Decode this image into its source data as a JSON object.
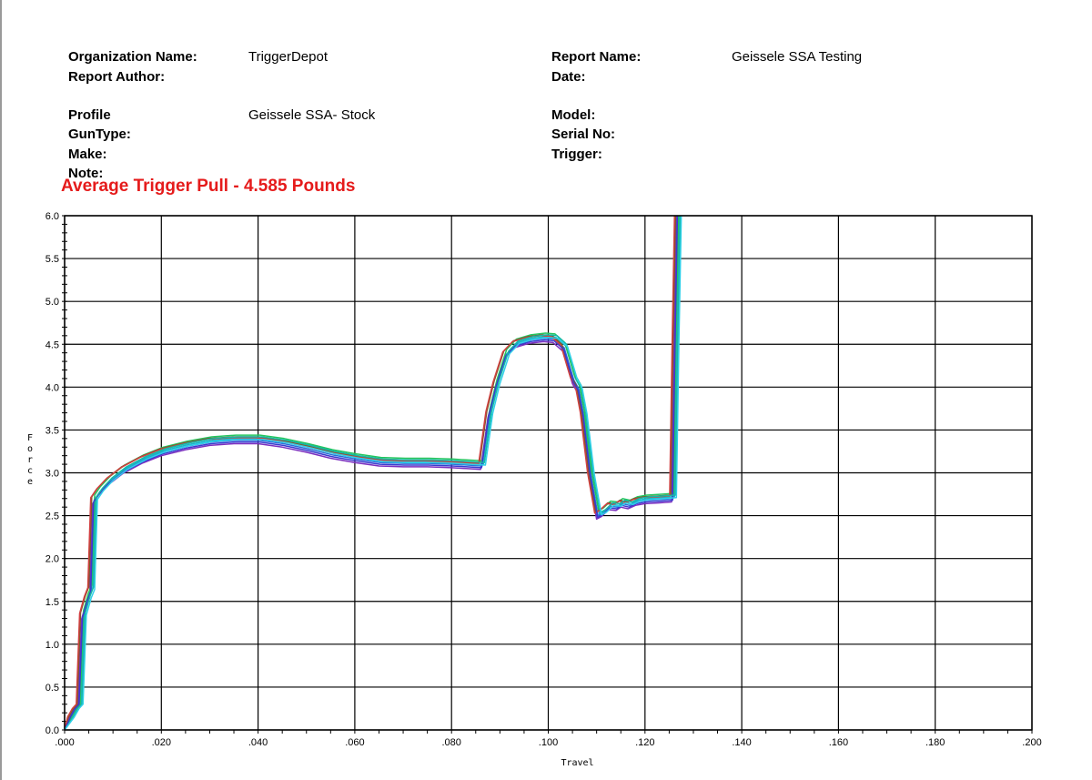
{
  "header": {
    "organization_label": "Organization Name:",
    "organization_value": "TriggerDepot",
    "report_author_label": "Report Author:",
    "report_name_label": "Report Name:",
    "report_name_value": "Geissele SSA Testing",
    "date_label": "Date:",
    "profile_label": "Profile",
    "profile_value": "Geissele SSA- Stock",
    "guntype_label": "GunType:",
    "make_label": "Make:",
    "note_label": "Note:",
    "model_label": "Model:",
    "serial_label": "Serial No:",
    "trigger_label": "Trigger:"
  },
  "colors": {
    "average_text": "#e51b1b",
    "grid": "#000000"
  },
  "chart_data": {
    "type": "line",
    "title": "Average Trigger Pull - 4.585 Pounds",
    "xlabel": "Travel",
    "ylabel": "Force",
    "xlim": [
      0,
      0.2
    ],
    "ylim": [
      0,
      6
    ],
    "x_ticks": [
      ".000",
      ".020",
      ".040",
      ".060",
      ".080",
      ".100",
      ".120",
      ".140",
      ".160",
      ".180",
      ".200"
    ],
    "y_ticks": [
      "0.0",
      "0.5",
      "1.0",
      "1.5",
      "2.0",
      "2.5",
      "3.0",
      "3.5",
      "4.0",
      "4.5",
      "5.0",
      "5.5",
      "6.0"
    ],
    "grid": true,
    "legend": "none",
    "series": [
      {
        "color": "#7b2fbf",
        "dx": 0.0,
        "dy": -0.06
      },
      {
        "color": "#2b6fd9",
        "dx": 0.0003,
        "dy": -0.02
      },
      {
        "color": "#1ab3c9",
        "dx": 0.0006,
        "dy": 0.0
      },
      {
        "color": "#22c55e",
        "dx": 0.0004,
        "dy": 0.04
      },
      {
        "color": "#7a5a2a",
        "dx": -0.0002,
        "dy": 0.02
      },
      {
        "color": "#d04040",
        "dx": -0.0004,
        "dy": 0.01
      },
      {
        "color": "#3a3acf",
        "dx": 0.0002,
        "dy": -0.04
      },
      {
        "color": "#14b8a6",
        "dx": 0.0008,
        "dy": 0.02
      },
      {
        "color": "#30d0e8",
        "dx": 0.001,
        "dy": -0.01
      }
    ],
    "base_curve": [
      [
        0.0,
        0.0
      ],
      [
        0.001,
        0.15
      ],
      [
        0.002,
        0.25
      ],
      [
        0.0028,
        0.3
      ],
      [
        0.0035,
        1.35
      ],
      [
        0.0045,
        1.55
      ],
      [
        0.0052,
        1.65
      ],
      [
        0.0058,
        2.7
      ],
      [
        0.007,
        2.8
      ],
      [
        0.009,
        2.92
      ],
      [
        0.012,
        3.05
      ],
      [
        0.016,
        3.17
      ],
      [
        0.02,
        3.26
      ],
      [
        0.025,
        3.33
      ],
      [
        0.03,
        3.38
      ],
      [
        0.035,
        3.4
      ],
      [
        0.04,
        3.4
      ],
      [
        0.045,
        3.36
      ],
      [
        0.05,
        3.3
      ],
      [
        0.055,
        3.23
      ],
      [
        0.06,
        3.18
      ],
      [
        0.065,
        3.14
      ],
      [
        0.07,
        3.13
      ],
      [
        0.075,
        3.13
      ],
      [
        0.08,
        3.12
      ],
      [
        0.083,
        3.11
      ],
      [
        0.086,
        3.1
      ],
      [
        0.0875,
        3.7
      ],
      [
        0.089,
        4.05
      ],
      [
        0.091,
        4.4
      ],
      [
        0.093,
        4.52
      ],
      [
        0.096,
        4.57
      ],
      [
        0.099,
        4.59
      ],
      [
        0.101,
        4.58
      ],
      [
        0.103,
        4.48
      ],
      [
        0.105,
        4.1
      ],
      [
        0.106,
        4.0
      ],
      [
        0.107,
        3.7
      ],
      [
        0.1085,
        3.0
      ],
      [
        0.11,
        2.52
      ],
      [
        0.111,
        2.55
      ],
      [
        0.1125,
        2.63
      ],
      [
        0.114,
        2.62
      ],
      [
        0.115,
        2.66
      ],
      [
        0.1165,
        2.64
      ],
      [
        0.118,
        2.68
      ],
      [
        0.12,
        2.7
      ],
      [
        0.123,
        2.71
      ],
      [
        0.1255,
        2.72
      ],
      [
        0.126,
        4.5
      ],
      [
        0.1265,
        6.0
      ]
    ]
  }
}
